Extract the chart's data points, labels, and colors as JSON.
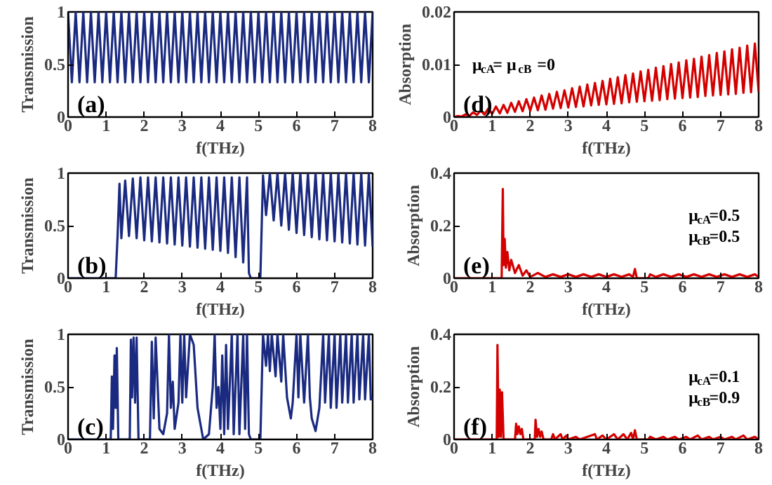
{
  "chart_data": [
    {
      "type": "line",
      "xlabel": "f(THz)",
      "ylabel": "Transmission",
      "annotations": [
        "(a)"
      ],
      "xlim": [
        0,
        8
      ],
      "ylim": [
        0,
        1
      ],
      "xticks": [
        0,
        1,
        2,
        3,
        4,
        5,
        6,
        7,
        8
      ],
      "yticks": [
        0,
        0.5,
        1
      ],
      "grid": false,
      "series": [
        {
          "color": "#1a2a80",
          "x": [
            0,
            0.1,
            0.2,
            0.3,
            0.4,
            0.5,
            0.6,
            0.7,
            0.8,
            0.9,
            1,
            1.1,
            1.2,
            1.3,
            1.4,
            1.5,
            1.6,
            1.7,
            1.8,
            1.9,
            2,
            2.1,
            2.2,
            2.3,
            2.4,
            2.5,
            2.6,
            2.7,
            2.8,
            2.9,
            3,
            3.1,
            3.2,
            3.3,
            3.4,
            3.5,
            3.6,
            3.7,
            3.8,
            3.9,
            4,
            4.1,
            4.2,
            4.3,
            4.4,
            4.5,
            4.6,
            4.7,
            4.8,
            4.9,
            5,
            5.1,
            5.2,
            5.3,
            5.4,
            5.5,
            5.6,
            5.7,
            5.8,
            5.9,
            6,
            6.1,
            6.2,
            6.3,
            6.4,
            6.5,
            6.6,
            6.7,
            6.8,
            6.9,
            7,
            7.1,
            7.2,
            7.3,
            7.4,
            7.5,
            7.6,
            7.7,
            7.8,
            7.9,
            8
          ],
          "values": [
            1,
            0.33,
            1,
            0.33,
            1,
            0.33,
            1,
            0.33,
            1,
            0.33,
            1,
            0.33,
            1,
            0.33,
            1,
            0.33,
            1,
            0.33,
            1,
            0.33,
            1,
            0.33,
            1,
            0.33,
            1,
            0.33,
            1,
            0.33,
            1,
            0.33,
            1,
            0.33,
            1,
            0.33,
            1,
            0.33,
            1,
            0.33,
            1,
            0.33,
            1,
            0.33,
            1,
            0.33,
            1,
            0.33,
            1,
            0.33,
            1,
            0.33,
            1,
            0.33,
            1,
            0.33,
            1,
            0.33,
            1,
            0.33,
            1,
            0.33,
            1,
            0.33,
            1,
            0.33,
            1,
            0.33,
            1,
            0.33,
            1,
            0.33,
            1,
            0.33,
            1,
            0.33,
            1,
            0.33,
            1,
            0.33,
            1,
            0.33,
            1
          ]
        }
      ]
    },
    {
      "type": "line",
      "xlabel": "f(THz)",
      "ylabel": "Absorption",
      "annotations": [
        "(d)",
        "μ$_{cA}$= μ$_{cB}$ =0"
      ],
      "xlim": [
        0,
        8
      ],
      "ylim": [
        0,
        0.02
      ],
      "xticks": [
        0,
        1,
        2,
        3,
        4,
        5,
        6,
        7,
        8
      ],
      "yticks": [
        0,
        0.01,
        0.02
      ],
      "grid": false,
      "series": [
        {
          "color": "#d40000",
          "x": [
            0,
            0.1,
            0.2,
            0.3,
            0.4,
            0.5,
            0.6,
            0.7,
            0.8,
            0.9,
            1,
            1.1,
            1.2,
            1.3,
            1.4,
            1.5,
            1.6,
            1.7,
            1.8,
            1.9,
            2,
            2.1,
            2.2,
            2.3,
            2.4,
            2.5,
            2.6,
            2.7,
            2.8,
            2.9,
            3,
            3.1,
            3.2,
            3.3,
            3.4,
            3.5,
            3.6,
            3.7,
            3.8,
            3.9,
            4,
            4.1,
            4.2,
            4.3,
            4.4,
            4.5,
            4.6,
            4.7,
            4.8,
            4.9,
            5,
            5.1,
            5.2,
            5.3,
            5.4,
            5.5,
            5.6,
            5.7,
            5.8,
            5.9,
            6,
            6.1,
            6.2,
            6.3,
            6.4,
            6.5,
            6.6,
            6.7,
            6.8,
            6.9,
            7,
            7.1,
            7.2,
            7.3,
            7.4,
            7.5,
            7.6,
            7.7,
            7.8,
            7.9,
            8
          ],
          "values": [
            0,
            0.0002,
            0.0001,
            0.0005,
            0.0002,
            0.0009,
            0.0004,
            0.0012,
            0.0005,
            0.0016,
            0.0006,
            0.002,
            0.0007,
            0.0023,
            0.0008,
            0.0027,
            0.001,
            0.003,
            0.0011,
            0.0034,
            0.0012,
            0.0037,
            0.0013,
            0.0041,
            0.0014,
            0.0044,
            0.0016,
            0.0048,
            0.0017,
            0.0051,
            0.0018,
            0.0055,
            0.0019,
            0.0058,
            0.002,
            0.0062,
            0.0022,
            0.0065,
            0.0023,
            0.0069,
            0.0024,
            0.0073,
            0.0025,
            0.0076,
            0.0026,
            0.008,
            0.0028,
            0.0083,
            0.0029,
            0.0087,
            0.003,
            0.009,
            0.0031,
            0.0094,
            0.0032,
            0.0097,
            0.0034,
            0.0101,
            0.0035,
            0.0104,
            0.0036,
            0.0108,
            0.0037,
            0.0111,
            0.0038,
            0.0115,
            0.004,
            0.0118,
            0.0041,
            0.0122,
            0.0042,
            0.0125,
            0.0043,
            0.0129,
            0.0044,
            0.0132,
            0.0046,
            0.0136,
            0.0047,
            0.014,
            0.0048
          ]
        }
      ]
    },
    {
      "type": "line",
      "xlabel": "f(THz)",
      "ylabel": "Transmission",
      "annotations": [
        "(b)"
      ],
      "xlim": [
        0,
        8
      ],
      "ylim": [
        0,
        1
      ],
      "xticks": [
        0,
        1,
        2,
        3,
        4,
        5,
        6,
        7,
        8
      ],
      "yticks": [
        0,
        0.5,
        1
      ],
      "grid": false,
      "series": [
        {
          "color": "#1a2a80",
          "x": [
            0,
            1.25,
            1.3,
            1.35,
            1.4,
            1.5,
            1.6,
            1.7,
            1.8,
            1.9,
            2,
            2.1,
            2.2,
            2.3,
            2.4,
            2.5,
            2.6,
            2.7,
            2.8,
            2.9,
            3,
            3.1,
            3.2,
            3.3,
            3.4,
            3.5,
            3.6,
            3.7,
            3.8,
            3.9,
            4,
            4.1,
            4.2,
            4.3,
            4.4,
            4.5,
            4.6,
            4.7,
            4.75,
            4.8,
            5.05,
            5.12,
            5.2,
            5.3,
            5.4,
            5.5,
            5.6,
            5.7,
            5.8,
            5.9,
            6,
            6.1,
            6.2,
            6.3,
            6.4,
            6.5,
            6.6,
            6.7,
            6.8,
            6.9,
            7,
            7.1,
            7.2,
            7.3,
            7.4,
            7.5,
            7.6,
            7.7,
            7.8,
            7.9,
            8
          ],
          "values": [
            0,
            0,
            0.4,
            0.9,
            0.38,
            0.93,
            0.4,
            0.95,
            0.38,
            0.96,
            0.36,
            0.96,
            0.35,
            0.96,
            0.34,
            0.96,
            0.33,
            0.96,
            0.32,
            0.96,
            0.31,
            0.96,
            0.3,
            0.96,
            0.29,
            0.96,
            0.28,
            0.96,
            0.27,
            0.96,
            0.26,
            0.96,
            0.24,
            0.96,
            0.2,
            0.96,
            0.15,
            0.96,
            0.05,
            0,
            0,
            0.98,
            0.6,
            1,
            0.55,
            1,
            0.5,
            1,
            0.46,
            1,
            0.43,
            1,
            0.41,
            1,
            0.39,
            1,
            0.37,
            1,
            0.36,
            1,
            0.35,
            1,
            0.34,
            1,
            0.33,
            1,
            0.32,
            1,
            0.31,
            1,
            0.3
          ]
        }
      ]
    },
    {
      "type": "line",
      "xlabel": "f(THz)",
      "ylabel": "Absorption",
      "annotations": [
        "(e)",
        "μ$_{cA}$=0.5",
        "μ$_{cB}$=0.5"
      ],
      "xlim": [
        0,
        8
      ],
      "ylim": [
        0,
        0.4
      ],
      "xticks": [
        0,
        1,
        2,
        3,
        4,
        5,
        6,
        7,
        8
      ],
      "yticks": [
        0,
        0.2,
        0.4
      ],
      "grid": false,
      "series": [
        {
          "color": "#d40000",
          "x": [
            0,
            1.25,
            1.28,
            1.3,
            1.33,
            1.36,
            1.4,
            1.45,
            1.5,
            1.6,
            1.7,
            1.8,
            1.9,
            2,
            2.2,
            2.4,
            2.6,
            2.8,
            3,
            3.2,
            3.4,
            3.6,
            3.8,
            4,
            4.2,
            4.4,
            4.6,
            4.7,
            4.75,
            4.8,
            5.1,
            5.15,
            5.3,
            5.5,
            5.7,
            5.9,
            6.1,
            6.3,
            6.5,
            6.7,
            6.9,
            7.1,
            7.3,
            7.5,
            7.7,
            7.9,
            8
          ],
          "values": [
            0,
            0,
            0.34,
            0.05,
            0.15,
            0.04,
            0.1,
            0.03,
            0.07,
            0.02,
            0.05,
            0.01,
            0.03,
            0.005,
            0.02,
            0.005,
            0.015,
            0.005,
            0.015,
            0.005,
            0.015,
            0.005,
            0.015,
            0.005,
            0.015,
            0.005,
            0.015,
            0.005,
            0.035,
            0,
            0,
            0.015,
            0.005,
            0.015,
            0.005,
            0.015,
            0.005,
            0.015,
            0.005,
            0.015,
            0.005,
            0.015,
            0.005,
            0.015,
            0.005,
            0.015,
            0.005
          ]
        }
      ]
    },
    {
      "type": "line",
      "xlabel": "f(THz)",
      "ylabel": "Transmission",
      "annotations": [
        "(c)"
      ],
      "xlim": [
        0,
        8
      ],
      "ylim": [
        0,
        1
      ],
      "xticks": [
        0,
        1,
        2,
        3,
        4,
        5,
        6,
        7,
        8
      ],
      "yticks": [
        0,
        0.5,
        1
      ],
      "grid": false,
      "series": [
        {
          "color": "#1a2a80",
          "x": [
            0,
            1.12,
            1.15,
            1.18,
            1.22,
            1.25,
            1.28,
            1.32,
            1.62,
            1.65,
            1.68,
            1.72,
            1.76,
            1.8,
            1.85,
            2.15,
            2.2,
            2.25,
            2.3,
            2.4,
            2.5,
            2.6,
            2.65,
            2.7,
            2.75,
            2.8,
            2.9,
            2.95,
            3,
            3.05,
            3.1,
            3.2,
            3.3,
            3.4,
            3.55,
            3.7,
            3.8,
            3.85,
            3.9,
            3.95,
            4,
            4.05,
            4.1,
            4.15,
            4.2,
            4.3,
            4.35,
            4.45,
            4.5,
            4.6,
            4.65,
            4.7,
            4.75,
            4.8,
            5.05,
            5.12,
            5.2,
            5.25,
            5.3,
            5.35,
            5.45,
            5.5,
            5.6,
            5.65,
            5.75,
            5.85,
            5.9,
            6,
            6.05,
            6.1,
            6.2,
            6.3,
            6.35,
            6.4,
            6.5,
            6.6,
            6.7,
            6.75,
            6.85,
            6.9,
            7,
            7.05,
            7.15,
            7.2,
            7.3,
            7.35,
            7.45,
            7.5,
            7.6,
            7.65,
            7.75,
            7.8,
            7.9,
            7.95,
            8
          ],
          "values": [
            0,
            0,
            0.6,
            0.1,
            0.8,
            0.3,
            0.87,
            0,
            0,
            0.95,
            0.4,
            0.97,
            0.35,
            0.97,
            0,
            0,
            0.93,
            0.2,
            0.97,
            0.1,
            0.05,
            0.25,
            1,
            0.3,
            0.55,
            0.1,
            0.35,
            1,
            0.35,
            1,
            0.4,
            1,
            0.9,
            0.3,
            0,
            0.05,
            0.5,
            1,
            0.3,
            0.5,
            0.1,
            0.8,
            0.05,
            0.9,
            0.1,
            1,
            0.05,
            1,
            0.05,
            1,
            0.1,
            1,
            0.05,
            0,
            0,
            1,
            0.7,
            1,
            0.65,
            1,
            0.6,
            1,
            0.55,
            1,
            0.4,
            0.2,
            0.35,
            1,
            0.4,
            1,
            0.35,
            1,
            0.4,
            0.2,
            0.08,
            0.3,
            1,
            0.35,
            1,
            0.3,
            1,
            0.3,
            1,
            0.35,
            1,
            0.35,
            1,
            0.35,
            1,
            0.38,
            1,
            0.38,
            1,
            0.38,
            0.4
          ]
        }
      ]
    },
    {
      "type": "line",
      "xlabel": "f(THz)",
      "ylabel": "Absorption",
      "annotations": [
        "(f)",
        "μ$_{cA}$=0.1",
        "μ$_{cB}$=0.9"
      ],
      "xlim": [
        0,
        8
      ],
      "ylim": [
        0,
        0.4
      ],
      "xticks": [
        0,
        1,
        2,
        3,
        4,
        5,
        6,
        7,
        8
      ],
      "yticks": [
        0,
        0.2,
        0.4
      ],
      "grid": false,
      "series": [
        {
          "color": "#d40000",
          "x": [
            0,
            1.12,
            1.14,
            1.17,
            1.2,
            1.23,
            1.26,
            1.3,
            1.6,
            1.63,
            1.66,
            1.7,
            1.74,
            1.78,
            1.82,
            2.12,
            2.14,
            2.18,
            2.22,
            2.26,
            2.3,
            2.35,
            2.55,
            2.6,
            2.65,
            2.8,
            2.85,
            2.95,
            3,
            3.2,
            3.3,
            3.7,
            3.75,
            3.9,
            4,
            4.2,
            4.3,
            4.45,
            4.55,
            4.65,
            4.7,
            4.75,
            4.8,
            5.1,
            5.15,
            5.3,
            5.5,
            5.6,
            5.8,
            5.9,
            6.1,
            6.2,
            6.4,
            6.5,
            6.7,
            6.8,
            7,
            7.1,
            7.3,
            7.4,
            7.6,
            7.7,
            7.9,
            8
          ],
          "values": [
            0,
            0,
            0.36,
            0.01,
            0.19,
            0.01,
            0.18,
            0,
            0,
            0.06,
            0.02,
            0.05,
            0.02,
            0.04,
            0,
            0,
            0.075,
            0.01,
            0.04,
            0.01,
            0.03,
            0,
            0,
            0.02,
            0,
            0.02,
            0,
            0.015,
            0,
            0.01,
            0,
            0.02,
            0,
            0.015,
            0,
            0.02,
            0,
            0.02,
            0,
            0.025,
            0,
            0.035,
            0,
            0,
            0.01,
            0,
            0.01,
            0,
            0.01,
            0,
            0.01,
            0,
            0.015,
            0,
            0.01,
            0,
            0.01,
            0,
            0.01,
            0,
            0.015,
            0,
            0.01,
            0
          ]
        }
      ]
    }
  ]
}
